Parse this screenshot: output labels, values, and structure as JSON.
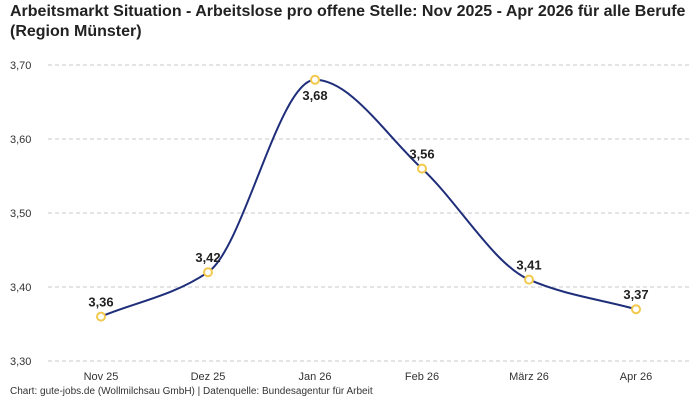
{
  "chart_data": {
    "type": "line",
    "title": "Arbeitsmarkt Situation - Arbeitslose pro offene Stelle: Nov 2025 - Apr 2026 für alle Berufe (Region Münster)",
    "categories": [
      "Nov 25",
      "Dez 25",
      "Jan 26",
      "Feb 26",
      "März 26",
      "Apr 26"
    ],
    "series": [
      {
        "values": [
          3.36,
          3.42,
          3.68,
          3.56,
          3.41,
          3.37
        ]
      }
    ],
    "data_labels": [
      "3,36",
      "3,42",
      "3,68",
      "3,56",
      "3,41",
      "3,37"
    ],
    "y_ticks": [
      "3,30",
      "3,40",
      "3,50",
      "3,60",
      "3,70"
    ],
    "y_tick_values": [
      3.3,
      3.4,
      3.5,
      3.6,
      3.7
    ],
    "ylim": [
      3.3,
      3.7
    ],
    "xlabel": "",
    "ylabel": "",
    "grid": "horizontal dashed",
    "line_color": "#1f2e7a",
    "marker_color": "#f2c94c"
  },
  "footer": "Chart: gute-jobs.de (Wollmilchsau GmbH) | Datenquelle: Bundesagentur für Arbeit"
}
